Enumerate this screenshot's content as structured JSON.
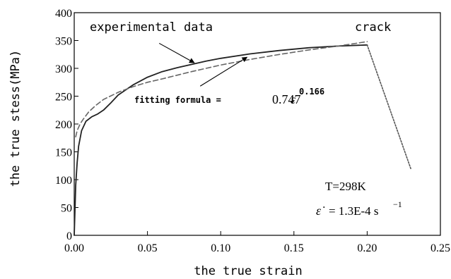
{
  "chart_data": {
    "type": "line",
    "xlabel": "the true strain",
    "ylabel": "the true stess(MPa)",
    "xlim": [
      0,
      0.25
    ],
    "ylim": [
      0,
      400
    ],
    "x_ticks": [
      "0.00",
      "0.05",
      "0.10",
      "0.15",
      "0.20",
      "0.25"
    ],
    "y_ticks": [
      "0",
      "50",
      "100",
      "150",
      "200",
      "250",
      "300",
      "350",
      "400"
    ],
    "grid": false,
    "series": [
      {
        "name": "experimental data",
        "style": "solid",
        "color": "#222222",
        "x": [
          0,
          0.001,
          0.002,
          0.003,
          0.005,
          0.008,
          0.012,
          0.016,
          0.02,
          0.025,
          0.03,
          0.04,
          0.05,
          0.06,
          0.07,
          0.08,
          0.09,
          0.1,
          0.12,
          0.14,
          0.16,
          0.18,
          0.2
        ],
        "y": [
          0,
          90,
          130,
          160,
          188,
          205,
          213,
          218,
          225,
          238,
          252,
          270,
          284,
          294,
          301,
          307,
          313,
          318,
          326,
          332,
          337,
          340,
          342
        ]
      },
      {
        "name": "fitting formula",
        "style": "dashed",
        "color": "#666666",
        "x": [
          0.001,
          0.002,
          0.004,
          0.006,
          0.01,
          0.015,
          0.02,
          0.03,
          0.04,
          0.05,
          0.06,
          0.08,
          0.1,
          0.12,
          0.14,
          0.16,
          0.18,
          0.2
        ],
        "y": [
          177,
          188,
          200,
          208,
          222,
          234,
          244,
          257,
          267,
          275,
          281,
          294,
          306,
          316,
          325,
          333,
          340,
          348
        ]
      },
      {
        "name": "crack",
        "style": "dotted",
        "color": "#555555",
        "x": [
          0.2,
          0.23
        ],
        "y": [
          342,
          118
        ]
      }
    ],
    "annotations": {
      "experimental": "experimental data",
      "crack": "crack",
      "fit_prefix": "fitting formula =",
      "fit_coef": "0.747",
      "fit_symbol": "ε",
      "fit_exponent": "0.166",
      "temperature": "T=298K",
      "rate_symbol": "ε̇",
      "rate_value": "= 1.3E-4 s",
      "rate_exponent": "−1"
    }
  }
}
